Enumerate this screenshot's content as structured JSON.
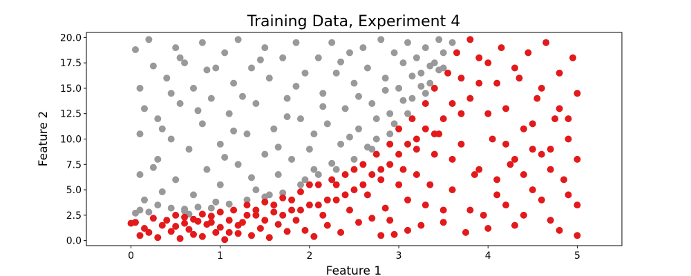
{
  "chart_data": {
    "type": "scatter",
    "title": "Training Data, Experiment 4",
    "xlabel": "Feature 1",
    "ylabel": "Feature 2",
    "xlim": [
      -0.5,
      5.5
    ],
    "ylim": [
      -0.5,
      20.5
    ],
    "xticks": [
      0,
      1,
      2,
      3,
      4,
      5
    ],
    "yticks": [
      0.0,
      2.5,
      5.0,
      7.5,
      10.0,
      12.5,
      15.0,
      17.5,
      20.0
    ],
    "xtick_labels": [
      "0",
      "1",
      "2",
      "3",
      "4",
      "5"
    ],
    "ytick_labels": [
      "0.0",
      "2.5",
      "5.0",
      "7.5",
      "10.0",
      "12.5",
      "15.0",
      "17.5",
      "20.0"
    ],
    "grid": false,
    "legend": "none",
    "series": [
      {
        "color": "#999999",
        "points": [
          [
            0.05,
            2.7
          ],
          [
            0.1,
            3.0
          ],
          [
            0.2,
            2.8
          ],
          [
            0.3,
            3.5
          ],
          [
            0.45,
            3.2
          ],
          [
            0.6,
            3.1
          ],
          [
            0.75,
            3.3
          ],
          [
            0.9,
            3.2
          ],
          [
            1.1,
            3.6
          ],
          [
            1.3,
            4.0
          ],
          [
            1.5,
            4.3
          ],
          [
            1.7,
            4.7
          ],
          [
            1.9,
            5.5
          ],
          [
            2.1,
            6.5
          ],
          [
            2.3,
            7.0
          ],
          [
            2.5,
            8.0
          ],
          [
            2.7,
            9.0
          ],
          [
            2.9,
            10.5
          ],
          [
            3.1,
            12.5
          ],
          [
            3.3,
            14.5
          ],
          [
            3.5,
            17.0
          ],
          [
            3.6,
            19.5
          ],
          [
            0.05,
            18.8
          ],
          [
            0.1,
            15.0
          ],
          [
            0.1,
            10.5
          ],
          [
            0.1,
            6.5
          ],
          [
            0.15,
            13.0
          ],
          [
            0.2,
            19.8
          ],
          [
            0.25,
            17.2
          ],
          [
            0.3,
            12.0
          ],
          [
            0.3,
            8.0
          ],
          [
            0.35,
            4.8
          ],
          [
            0.4,
            16.0
          ],
          [
            0.45,
            10.0
          ],
          [
            0.5,
            19.0
          ],
          [
            0.5,
            6.0
          ],
          [
            0.55,
            13.5
          ],
          [
            0.6,
            2.9
          ],
          [
            0.6,
            17.5
          ],
          [
            0.65,
            9.0
          ],
          [
            0.7,
            15.0
          ],
          [
            0.7,
            4.5
          ],
          [
            0.8,
            19.5
          ],
          [
            0.8,
            11.5
          ],
          [
            0.85,
            7.0
          ],
          [
            0.9,
            14.0
          ],
          [
            0.95,
            17.0
          ],
          [
            1.0,
            9.5
          ],
          [
            1.0,
            5.5
          ],
          [
            1.05,
            18.5
          ],
          [
            1.1,
            12.5
          ],
          [
            1.15,
            15.5
          ],
          [
            1.2,
            7.5
          ],
          [
            1.2,
            19.8
          ],
          [
            1.3,
            10.5
          ],
          [
            1.35,
            17.0
          ],
          [
            1.4,
            13.5
          ],
          [
            1.4,
            5.0
          ],
          [
            1.5,
            19.0
          ],
          [
            1.5,
            8.5
          ],
          [
            1.55,
            16.0
          ],
          [
            1.6,
            11.0
          ],
          [
            1.65,
            6.5
          ],
          [
            1.7,
            18.0
          ],
          [
            1.75,
            14.0
          ],
          [
            1.8,
            8.0
          ],
          [
            1.85,
            19.5
          ],
          [
            1.9,
            12.0
          ],
          [
            1.95,
            16.5
          ],
          [
            2.0,
            9.0
          ],
          [
            2.05,
            7.0
          ],
          [
            2.1,
            18.0
          ],
          [
            2.15,
            14.5
          ],
          [
            2.2,
            11.5
          ],
          [
            2.25,
            19.5
          ],
          [
            2.3,
            16.5
          ],
          [
            2.35,
            9.5
          ],
          [
            2.4,
            13.0
          ],
          [
            2.45,
            18.5
          ],
          [
            2.5,
            15.5
          ],
          [
            2.55,
            11.0
          ],
          [
            2.6,
            19.0
          ],
          [
            2.65,
            17.0
          ],
          [
            2.7,
            13.5
          ],
          [
            2.75,
            10.0
          ],
          [
            2.8,
            19.8
          ],
          [
            2.85,
            16.0
          ],
          [
            2.9,
            12.5
          ],
          [
            2.95,
            18.5
          ],
          [
            3.0,
            15.0
          ],
          [
            3.05,
            17.5
          ],
          [
            3.1,
            19.5
          ],
          [
            3.15,
            14.0
          ],
          [
            3.2,
            18.0
          ],
          [
            3.25,
            16.5
          ],
          [
            3.3,
            19.0
          ],
          [
            3.35,
            15.5
          ],
          [
            3.4,
            17.5
          ],
          [
            3.45,
            19.8
          ],
          [
            3.5,
            18.5
          ],
          [
            0.15,
            4.0
          ],
          [
            0.25,
            7.2
          ],
          [
            0.35,
            11.0
          ],
          [
            0.45,
            14.5
          ],
          [
            0.55,
            18.0
          ],
          [
            0.65,
            2.6
          ],
          [
            0.75,
            12.8
          ],
          [
            0.85,
            16.8
          ],
          [
            0.95,
            3.8
          ],
          [
            1.05,
            8.2
          ],
          [
            1.15,
            10.8
          ],
          [
            1.25,
            14.2
          ],
          [
            1.35,
            6.2
          ],
          [
            1.45,
            17.8
          ],
          [
            1.55,
            4.5
          ],
          [
            1.65,
            9.2
          ],
          [
            1.75,
            12.2
          ],
          [
            1.85,
            15.2
          ],
          [
            1.95,
            6.0
          ],
          [
            2.05,
            10.5
          ],
          [
            2.15,
            13.2
          ],
          [
            2.25,
            7.6
          ],
          [
            2.35,
            17.6
          ],
          [
            2.45,
            10.2
          ],
          [
            2.55,
            14.2
          ],
          [
            2.65,
            9.2
          ],
          [
            2.75,
            12.0
          ],
          [
            2.85,
            14.8
          ],
          [
            2.95,
            11.5
          ],
          [
            3.05,
            13.8
          ],
          [
            3.15,
            16.2
          ],
          [
            3.25,
            15.2
          ],
          [
            3.35,
            17.2
          ],
          [
            3.45,
            16.8
          ]
        ]
      },
      {
        "color": "#e31a1c",
        "points": [
          [
            0.0,
            1.7
          ],
          [
            0.05,
            1.8
          ],
          [
            0.1,
            0.5
          ],
          [
            0.15,
            1.2
          ],
          [
            0.2,
            0.8
          ],
          [
            0.25,
            2.2
          ],
          [
            0.3,
            0.3
          ],
          [
            0.35,
            1.5
          ],
          [
            0.4,
            2.0
          ],
          [
            0.45,
            0.9
          ],
          [
            0.5,
            1.4
          ],
          [
            0.55,
            0.2
          ],
          [
            0.6,
            2.3
          ],
          [
            0.65,
            1.1
          ],
          [
            0.7,
            0.6
          ],
          [
            0.75,
            1.9
          ],
          [
            0.8,
            0.4
          ],
          [
            0.85,
            1.6
          ],
          [
            0.9,
            2.4
          ],
          [
            0.95,
            0.8
          ],
          [
            1.0,
            1.3
          ],
          [
            1.05,
            0.1
          ],
          [
            1.1,
            2.0
          ],
          [
            1.15,
            3.0
          ],
          [
            1.2,
            0.7
          ],
          [
            1.25,
            1.8
          ],
          [
            1.3,
            3.5
          ],
          [
            1.35,
            0.5
          ],
          [
            1.4,
            2.5
          ],
          [
            1.45,
            1.2
          ],
          [
            1.5,
            3.8
          ],
          [
            1.55,
            0.3
          ],
          [
            1.6,
            2.8
          ],
          [
            1.65,
            1.6
          ],
          [
            1.7,
            4.2
          ],
          [
            1.75,
            0.9
          ],
          [
            1.8,
            3.0
          ],
          [
            1.85,
            2.0
          ],
          [
            1.9,
            4.8
          ],
          [
            1.95,
            1.0
          ],
          [
            2.0,
            3.5
          ],
          [
            2.05,
            0.4
          ],
          [
            2.1,
            5.5
          ],
          [
            2.15,
            2.5
          ],
          [
            2.2,
            1.5
          ],
          [
            2.25,
            6.0
          ],
          [
            2.3,
            4.0
          ],
          [
            2.35,
            0.8
          ],
          [
            2.4,
            6.5
          ],
          [
            2.45,
            3.0
          ],
          [
            2.5,
            5.0
          ],
          [
            2.55,
            1.8
          ],
          [
            2.6,
            7.5
          ],
          [
            2.65,
            4.5
          ],
          [
            2.7,
            2.2
          ],
          [
            2.75,
            8.5
          ],
          [
            2.8,
            6.0
          ],
          [
            2.85,
            3.2
          ],
          [
            2.9,
            9.5
          ],
          [
            2.95,
            0.6
          ],
          [
            3.0,
            11.0
          ],
          [
            3.05,
            7.0
          ],
          [
            3.1,
            4.0
          ],
          [
            3.15,
            12.0
          ],
          [
            3.2,
            9.0
          ],
          [
            3.25,
            1.5
          ],
          [
            3.3,
            13.5
          ],
          [
            3.35,
            5.5
          ],
          [
            3.4,
            15.0
          ],
          [
            3.45,
            10.5
          ],
          [
            3.5,
            3.0
          ],
          [
            3.55,
            16.5
          ],
          [
            3.6,
            8.0
          ],
          [
            3.65,
            18.5
          ],
          [
            3.7,
            12.5
          ],
          [
            3.75,
            0.8
          ],
          [
            3.8,
            19.8
          ],
          [
            3.85,
            6.5
          ],
          [
            3.9,
            15.5
          ],
          [
            3.95,
            2.5
          ],
          [
            4.0,
            17.5
          ],
          [
            4.05,
            10.0
          ],
          [
            4.1,
            4.5
          ],
          [
            4.15,
            19.0
          ],
          [
            4.2,
            13.0
          ],
          [
            4.25,
            7.5
          ],
          [
            4.3,
            1.5
          ],
          [
            4.35,
            16.0
          ],
          [
            4.4,
            11.0
          ],
          [
            4.45,
            18.5
          ],
          [
            4.5,
            5.0
          ],
          [
            4.55,
            14.0
          ],
          [
            4.6,
            8.5
          ],
          [
            4.65,
            19.5
          ],
          [
            4.7,
            2.0
          ],
          [
            4.75,
            12.0
          ],
          [
            4.8,
            16.5
          ],
          [
            4.85,
            6.0
          ],
          [
            4.9,
            10.0
          ],
          [
            4.95,
            18.0
          ],
          [
            5.0,
            3.5
          ],
          [
            5.0,
            14.5
          ],
          [
            5.0,
            8.0
          ],
          [
            5.0,
            0.5
          ],
          [
            3.7,
            16.0
          ],
          [
            3.8,
            14.0
          ],
          [
            3.9,
            18.0
          ],
          [
            4.0,
            12.5
          ],
          [
            4.1,
            15.5
          ],
          [
            4.2,
            9.5
          ],
          [
            4.3,
            17.0
          ],
          [
            4.4,
            6.5
          ],
          [
            4.5,
            11.5
          ],
          [
            4.6,
            15.0
          ],
          [
            4.7,
            9.0
          ],
          [
            4.8,
            13.0
          ],
          [
            4.9,
            4.5
          ],
          [
            2.8,
            0.5
          ],
          [
            2.9,
            2.0
          ],
          [
            3.0,
            5.5
          ],
          [
            3.1,
            1.0
          ],
          [
            3.2,
            6.5
          ],
          [
            3.3,
            3.5
          ],
          [
            3.4,
            8.5
          ],
          [
            3.5,
            1.8
          ],
          [
            3.6,
            5.0
          ],
          [
            3.7,
            9.5
          ],
          [
            3.8,
            3.0
          ],
          [
            3.9,
            7.0
          ],
          [
            4.0,
            1.2
          ],
          [
            4.1,
            6.0
          ],
          [
            4.2,
            3.5
          ],
          [
            4.3,
            8.0
          ],
          [
            4.4,
            2.5
          ],
          [
            4.5,
            9.0
          ],
          [
            4.6,
            4.0
          ],
          [
            4.7,
            7.0
          ],
          [
            4.8,
            1.0
          ],
          [
            4.9,
            12.0
          ],
          [
            3.6,
            13.5
          ],
          [
            3.5,
            12.0
          ],
          [
            3.4,
            10.5
          ],
          [
            3.3,
            11.0
          ],
          [
            3.2,
            10.0
          ],
          [
            3.1,
            9.5
          ],
          [
            3.0,
            8.5
          ],
          [
            2.9,
            7.5
          ],
          [
            2.8,
            7.0
          ],
          [
            2.7,
            6.5
          ],
          [
            2.6,
            5.5
          ],
          [
            2.5,
            7.0
          ],
          [
            2.4,
            4.5
          ],
          [
            2.3,
            5.5
          ],
          [
            2.2,
            4.0
          ],
          [
            2.1,
            3.5
          ],
          [
            2.0,
            5.5
          ],
          [
            1.9,
            3.0
          ],
          [
            1.8,
            4.0
          ],
          [
            1.7,
            2.5
          ],
          [
            1.6,
            3.5
          ],
          [
            1.5,
            2.0
          ],
          [
            1.4,
            3.0
          ],
          [
            1.3,
            2.5
          ],
          [
            1.2,
            1.5
          ],
          [
            1.1,
            0.8
          ],
          [
            1.0,
            2.8
          ],
          [
            0.9,
            1.8
          ],
          [
            0.8,
            2.6
          ],
          [
            0.7,
            2.1
          ],
          [
            0.6,
            1.7
          ],
          [
            0.5,
            2.5
          ]
        ]
      }
    ]
  }
}
